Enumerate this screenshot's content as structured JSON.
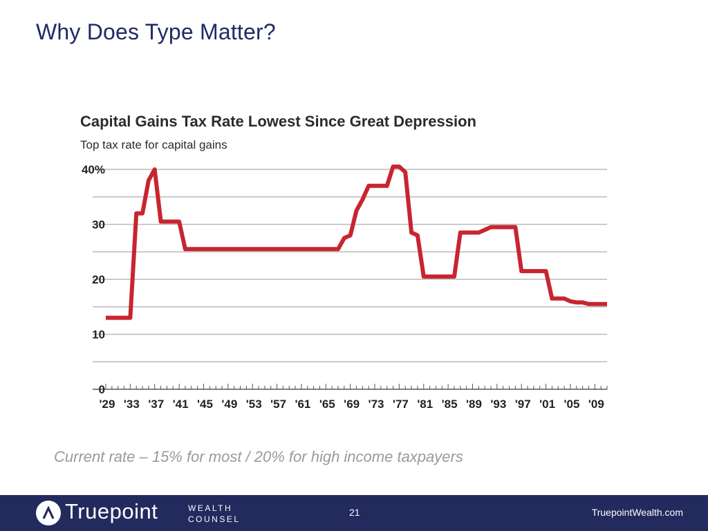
{
  "slide": {
    "title": "Why Does Type Matter?",
    "caption": "Current rate – 15% for most / 20% for high income taxpayers"
  },
  "chart_data": {
    "type": "line",
    "title": "Capital Gains Tax Rate Lowest Since Great Depression",
    "subtitle": "Top tax rate for capital gains",
    "xlabel": "",
    "ylabel": "",
    "xlim": [
      1929,
      2011
    ],
    "ylim": [
      0,
      40
    ],
    "grid": true,
    "y_ticks": [
      0,
      10,
      20,
      30,
      40
    ],
    "y_tick_labels": [
      "0",
      "10",
      "20",
      "30",
      "40%"
    ],
    "x_ticks": [
      1929,
      1933,
      1937,
      1941,
      1945,
      1949,
      1953,
      1957,
      1961,
      1965,
      1969,
      1973,
      1977,
      1981,
      1985,
      1989,
      1993,
      1997,
      2001,
      2005,
      2009
    ],
    "x_tick_labels": [
      "'29",
      "'33",
      "'37",
      "'41",
      "'45",
      "'49",
      "'53",
      "'57",
      "'61",
      "'65",
      "'69",
      "'73",
      "'77",
      "'81",
      "'85",
      "'89",
      "'93",
      "'97",
      "'01",
      "'05",
      "'09"
    ],
    "series": [
      {
        "name": "Top tax rate for capital gains",
        "color": "#c8252f",
        "x": [
          1929,
          1933,
          1934,
          1935,
          1936,
          1937,
          1938,
          1941,
          1942,
          1967,
          1968,
          1969,
          1970,
          1971,
          1972,
          1973,
          1974,
          1975,
          1976,
          1977,
          1978,
          1979,
          1980,
          1981,
          1982,
          1986,
          1987,
          1990,
          1991,
          1992,
          1993,
          1996,
          1997,
          2000,
          2001,
          2002,
          2003,
          2004,
          2005,
          2006,
          2007,
          2008,
          2011
        ],
        "values": [
          13,
          13,
          32,
          32,
          38,
          40,
          30.5,
          30.5,
          25.5,
          25.5,
          27.5,
          28,
          32.5,
          34.5,
          37,
          37,
          37,
          37,
          40.5,
          40.5,
          39.5,
          28.5,
          28,
          20.5,
          20.5,
          20.5,
          28.5,
          28.5,
          29,
          29.5,
          29.5,
          29.5,
          21.5,
          21.5,
          21.5,
          16.5,
          16.5,
          16.5,
          16,
          15.8,
          15.8,
          15.5,
          15.5
        ]
      }
    ]
  },
  "footer": {
    "brand_name": "Truepoint",
    "brand_line1": "WEALTH",
    "brand_line2": "COUNSEL",
    "page_number": "21",
    "website": "TruepointWealth.com"
  }
}
